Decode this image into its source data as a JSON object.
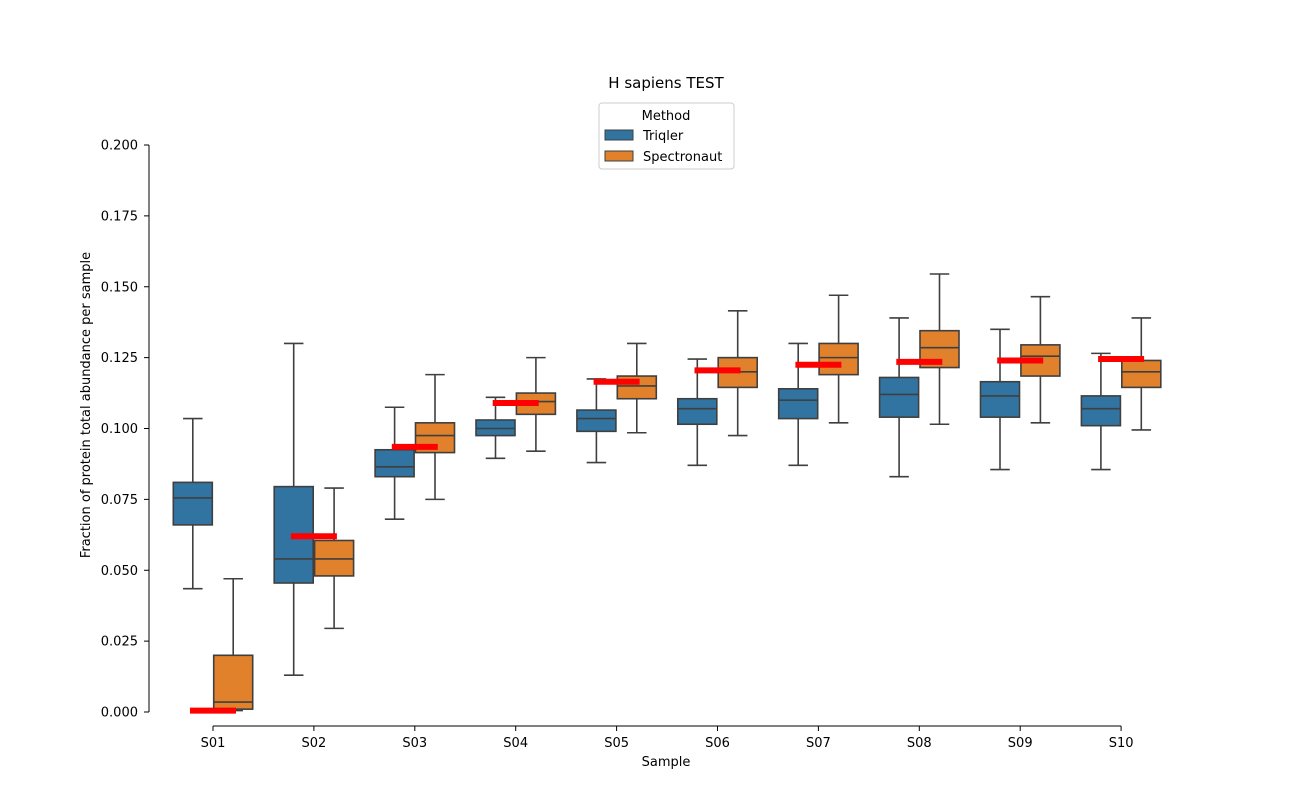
{
  "chart_data": {
    "type": "box",
    "title": "H sapiens TEST",
    "xlabel": "Sample",
    "ylabel": "Fraction of protein total abundance per sample",
    "categories": [
      "S01",
      "S02",
      "S03",
      "S04",
      "S05",
      "S06",
      "S07",
      "S08",
      "S09",
      "S10"
    ],
    "ylim": [
      0,
      0.2
    ],
    "yticks": [
      "0.000",
      "0.025",
      "0.050",
      "0.075",
      "0.100",
      "0.125",
      "0.150",
      "0.175",
      "0.200"
    ],
    "legend": {
      "title": "Method",
      "placement": "top-center",
      "entries": [
        "Triqler",
        "Spectronaut"
      ]
    },
    "series": [
      {
        "name": "Triqler",
        "color": "#3274a1",
        "boxes": [
          {
            "whislo": 0.0435,
            "q1": 0.066,
            "med": 0.0755,
            "q3": 0.081,
            "whishi": 0.1035
          },
          {
            "whislo": 0.013,
            "q1": 0.0455,
            "med": 0.054,
            "q3": 0.0795,
            "whishi": 0.13
          },
          {
            "whislo": 0.068,
            "q1": 0.083,
            "med": 0.0865,
            "q3": 0.0925,
            "whishi": 0.1075
          },
          {
            "whislo": 0.0895,
            "q1": 0.0975,
            "med": 0.1,
            "q3": 0.103,
            "whishi": 0.111
          },
          {
            "whislo": 0.088,
            "q1": 0.099,
            "med": 0.1035,
            "q3": 0.1065,
            "whishi": 0.1175
          },
          {
            "whislo": 0.087,
            "q1": 0.1015,
            "med": 0.107,
            "q3": 0.1105,
            "whishi": 0.1245
          },
          {
            "whislo": 0.087,
            "q1": 0.1035,
            "med": 0.11,
            "q3": 0.114,
            "whishi": 0.13
          },
          {
            "whislo": 0.083,
            "q1": 0.104,
            "med": 0.112,
            "q3": 0.118,
            "whishi": 0.139
          },
          {
            "whislo": 0.0855,
            "q1": 0.104,
            "med": 0.1115,
            "q3": 0.1165,
            "whishi": 0.135
          },
          {
            "whislo": 0.0855,
            "q1": 0.101,
            "med": 0.107,
            "q3": 0.1115,
            "whishi": 0.1265
          }
        ]
      },
      {
        "name": "Spectronaut",
        "color": "#e1812c",
        "boxes": [
          {
            "whislo": 0.0005,
            "q1": 0.001,
            "med": 0.0035,
            "q3": 0.02,
            "whishi": 0.047
          },
          {
            "whislo": 0.0295,
            "q1": 0.048,
            "med": 0.054,
            "q3": 0.0605,
            "whishi": 0.079
          },
          {
            "whislo": 0.075,
            "q1": 0.0915,
            "med": 0.0975,
            "q3": 0.102,
            "whishi": 0.119
          },
          {
            "whislo": 0.092,
            "q1": 0.105,
            "med": 0.1095,
            "q3": 0.1125,
            "whishi": 0.125
          },
          {
            "whislo": 0.0985,
            "q1": 0.1105,
            "med": 0.115,
            "q3": 0.1185,
            "whishi": 0.13
          },
          {
            "whislo": 0.0975,
            "q1": 0.1145,
            "med": 0.12,
            "q3": 0.125,
            "whishi": 0.1415
          },
          {
            "whislo": 0.102,
            "q1": 0.119,
            "med": 0.125,
            "q3": 0.13,
            "whishi": 0.147
          },
          {
            "whislo": 0.1015,
            "q1": 0.1215,
            "med": 0.1285,
            "q3": 0.1345,
            "whishi": 0.1545
          },
          {
            "whislo": 0.102,
            "q1": 0.1185,
            "med": 0.1255,
            "q3": 0.1295,
            "whishi": 0.1465
          },
          {
            "whislo": 0.0995,
            "q1": 0.1145,
            "med": 0.12,
            "q3": 0.124,
            "whishi": 0.139
          }
        ]
      }
    ],
    "reference_lines": {
      "color": "#ff0000",
      "values": [
        0.0005,
        0.062,
        0.0935,
        0.109,
        0.1165,
        0.1205,
        0.1225,
        0.1235,
        0.124,
        0.1245
      ]
    },
    "grid": false
  }
}
